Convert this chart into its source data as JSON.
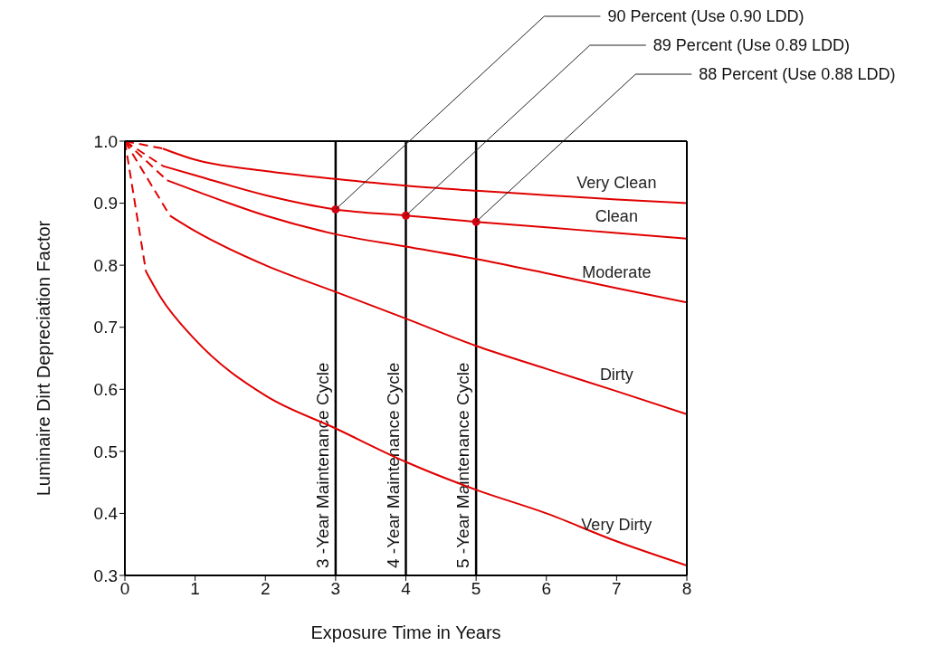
{
  "chart_data": {
    "type": "line",
    "xlabel": "Exposure Time in Years",
    "ylabel": "Luminaire Dirt Depreciation Factor",
    "xlim": [
      0,
      8
    ],
    "xticks": [
      0,
      1,
      2,
      3,
      4,
      5,
      6,
      7,
      8
    ],
    "ylim": [
      0.3,
      1.0
    ],
    "yticks": [
      {
        "value": 0.3,
        "label": "0.3"
      },
      {
        "value": 0.4,
        "label": "0.4"
      },
      {
        "value": 0.5,
        "label": "0.5"
      },
      {
        "value": 0.6,
        "label": "0.6"
      },
      {
        "value": 0.7,
        "label": "0.7"
      },
      {
        "value": 0.8,
        "label": "0.8"
      },
      {
        "value": 0.9,
        "label": "0.9"
      },
      {
        "value": 1.0,
        "label": "1.0"
      }
    ],
    "grid": false,
    "legend": false,
    "marker": "none",
    "line_style": "solid",
    "series": [
      {
        "color": "#e00000",
        "line_style": "dashed",
        "x": [
          0,
          0.54
        ],
        "values": [
          1.0,
          0.988
        ]
      },
      {
        "color": "#e00000",
        "line_style": "dashed",
        "x": [
          0,
          0.54
        ],
        "values": [
          1.0,
          0.96
        ]
      },
      {
        "color": "#e00000",
        "line_style": "dashed",
        "x": [
          0,
          0.6
        ],
        "values": [
          1.0,
          0.937
        ]
      },
      {
        "color": "#e00000",
        "line_style": "dashed",
        "x": [
          0,
          0.64
        ],
        "values": [
          1.0,
          0.88
        ]
      },
      {
        "color": "#e00000",
        "line_style": "dashed",
        "x": [
          0,
          0.3
        ],
        "values": [
          1.0,
          0.79
        ]
      },
      {
        "name": "Very Clean",
        "color": "#e00000",
        "x": [
          0.54,
          1,
          2,
          3,
          4,
          5,
          6,
          7,
          8
        ],
        "values": [
          0.988,
          0.97,
          0.952,
          0.939,
          0.928,
          0.92,
          0.913,
          0.906,
          0.9
        ]
      },
      {
        "name": "Clean",
        "color": "#e00000",
        "x": [
          0.54,
          1,
          2,
          3,
          4,
          5,
          6,
          7,
          8
        ],
        "values": [
          0.96,
          0.945,
          0.913,
          0.89,
          0.88,
          0.87,
          0.861,
          0.852,
          0.843
        ]
      },
      {
        "name": "Moderate",
        "color": "#e00000",
        "x": [
          0.6,
          1,
          2,
          3,
          4,
          5,
          6,
          7,
          8
        ],
        "values": [
          0.937,
          0.92,
          0.88,
          0.85,
          0.83,
          0.81,
          0.787,
          0.763,
          0.74
        ]
      },
      {
        "name": "Dirty",
        "color": "#e00000",
        "x": [
          0.64,
          1,
          2,
          3,
          4,
          5,
          6,
          7,
          8
        ],
        "values": [
          0.88,
          0.855,
          0.8,
          0.757,
          0.714,
          0.67,
          0.633,
          0.597,
          0.56
        ]
      },
      {
        "name": "Very Dirty",
        "color": "#e00000",
        "x": [
          0.3,
          0.5,
          1,
          2,
          3,
          4,
          5,
          6,
          7,
          8
        ],
        "values": [
          0.79,
          0.75,
          0.68,
          0.59,
          0.537,
          0.483,
          0.438,
          0.4,
          0.355,
          0.316
        ]
      },
      {
        "type": "scatter",
        "color": "#d50010",
        "marker": "circle",
        "x": [
          3,
          4,
          5
        ],
        "values": [
          0.89,
          0.88,
          0.87
        ]
      }
    ],
    "ref_lines": [
      {
        "axis": "x",
        "value": 3,
        "label": "3 -Year Maintenance Cycle",
        "color": "#000000"
      },
      {
        "axis": "x",
        "value": 4,
        "label": "4 -Year Maintenance Cycle",
        "color": "#000000"
      },
      {
        "axis": "x",
        "value": 5,
        "label": "5 -Year Maintenance Cycle",
        "color": "#000000"
      }
    ],
    "annotations": [
      {
        "text": "90 Percent (Use 0.90 LDD)",
        "x": 3,
        "y": 0.89
      },
      {
        "text": "89 Percent (Use 0.89 LDD)",
        "x": 4,
        "y": 0.88
      },
      {
        "text": "88 Percent (Use 0.88 LDD)",
        "x": 5,
        "y": 0.87
      }
    ]
  }
}
